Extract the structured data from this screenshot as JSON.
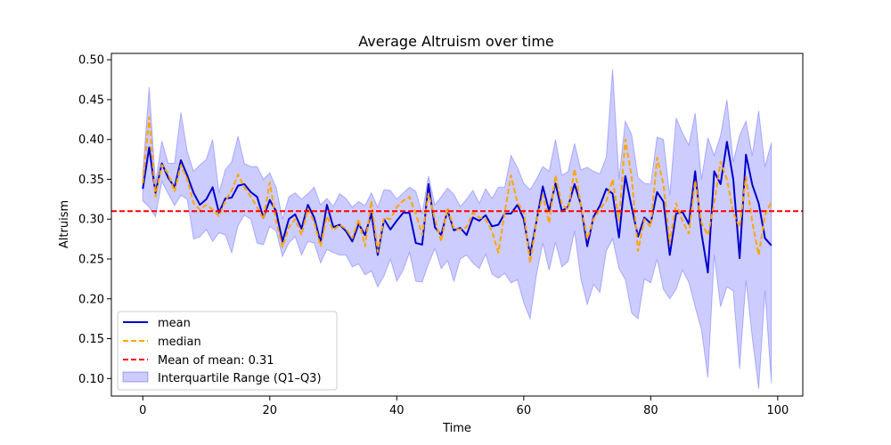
{
  "chart_data": {
    "type": "line",
    "title": "Average Altruism over time",
    "xlabel": "Time",
    "ylabel": "Altruism",
    "xlim": [
      -4.95,
      103.95
    ],
    "ylim": [
      0.078,
      0.508
    ],
    "x_ticks": [
      0,
      20,
      40,
      60,
      80,
      100
    ],
    "y_ticks": [
      0.1,
      0.15,
      0.2,
      0.25,
      0.3,
      0.35,
      0.4,
      0.45,
      0.5
    ],
    "grid": false,
    "legend_position": "lower-left",
    "reference_line": {
      "label": "Mean of mean: 0.31",
      "value": 0.31,
      "color": "#ff0000",
      "style": "dashed"
    },
    "band": {
      "label": "Interquartile Range (Q1–Q3)",
      "color": "#0000ff",
      "opacity": 0.2
    },
    "x": [
      0,
      1,
      2,
      3,
      4,
      5,
      6,
      7,
      8,
      9,
      10,
      11,
      12,
      13,
      14,
      15,
      16,
      17,
      18,
      19,
      20,
      21,
      22,
      23,
      24,
      25,
      26,
      27,
      28,
      29,
      30,
      31,
      32,
      33,
      34,
      35,
      36,
      37,
      38,
      39,
      40,
      41,
      42,
      43,
      44,
      45,
      46,
      47,
      48,
      49,
      50,
      51,
      52,
      53,
      54,
      55,
      56,
      57,
      58,
      59,
      60,
      61,
      62,
      63,
      64,
      65,
      66,
      67,
      68,
      69,
      70,
      71,
      72,
      73,
      74,
      75,
      76,
      77,
      78,
      79,
      80,
      81,
      82,
      83,
      84,
      85,
      86,
      87,
      88,
      89,
      90,
      91,
      92,
      93,
      94,
      95,
      96,
      97,
      98,
      99
    ],
    "series": [
      {
        "name": "mean",
        "color": "#0000cc",
        "style": "solid",
        "values": [
          0.338,
          0.39,
          0.333,
          0.37,
          0.352,
          0.34,
          0.374,
          0.355,
          0.333,
          0.318,
          0.325,
          0.34,
          0.308,
          0.326,
          0.327,
          0.342,
          0.344,
          0.334,
          0.328,
          0.302,
          0.324,
          0.31,
          0.272,
          0.3,
          0.306,
          0.288,
          0.318,
          0.302,
          0.271,
          0.318,
          0.29,
          0.293,
          0.285,
          0.272,
          0.294,
          0.28,
          0.307,
          0.255,
          0.3,
          0.287,
          0.298,
          0.308,
          0.308,
          0.27,
          0.268,
          0.344,
          0.29,
          0.28,
          0.311,
          0.286,
          0.289,
          0.28,
          0.302,
          0.298,
          0.305,
          0.291,
          0.293,
          0.307,
          0.307,
          0.318,
          0.3,
          0.255,
          0.297,
          0.341,
          0.31,
          0.345,
          0.31,
          0.316,
          0.344,
          0.318,
          0.266,
          0.303,
          0.317,
          0.338,
          0.332,
          0.277,
          0.354,
          0.315,
          0.278,
          0.302,
          0.295,
          0.334,
          0.322,
          0.255,
          0.307,
          0.309,
          0.294,
          0.36,
          0.282,
          0.233,
          0.36,
          0.344,
          0.397,
          0.35,
          0.251,
          0.381,
          0.343,
          0.32,
          0.276,
          0.267
        ]
      },
      {
        "name": "median",
        "color": "#ffa500",
        "style": "dashed",
        "values": [
          0.345,
          0.428,
          0.328,
          0.368,
          0.357,
          0.335,
          0.368,
          0.35,
          0.32,
          0.312,
          0.318,
          0.312,
          0.304,
          0.323,
          0.336,
          0.356,
          0.34,
          0.328,
          0.315,
          0.3,
          0.346,
          0.298,
          0.265,
          0.29,
          0.3,
          0.28,
          0.313,
          0.296,
          0.266,
          0.304,
          0.286,
          0.293,
          0.288,
          0.276,
          0.3,
          0.266,
          0.323,
          0.259,
          0.302,
          0.3,
          0.315,
          0.323,
          0.328,
          0.307,
          0.28,
          0.332,
          0.3,
          0.272,
          0.314,
          0.288,
          0.287,
          0.29,
          0.308,
          0.302,
          0.3,
          0.285,
          0.258,
          0.308,
          0.355,
          0.32,
          0.311,
          0.245,
          0.297,
          0.33,
          0.295,
          0.355,
          0.318,
          0.312,
          0.363,
          0.318,
          0.275,
          0.3,
          0.312,
          0.323,
          0.35,
          0.298,
          0.4,
          0.353,
          0.26,
          0.3,
          0.29,
          0.377,
          0.344,
          0.27,
          0.32,
          0.298,
          0.282,
          0.348,
          0.295,
          0.28,
          0.32,
          0.372,
          0.35,
          0.308,
          0.29,
          0.353,
          0.296,
          0.255,
          0.305,
          0.322
        ]
      }
    ],
    "iqr_q1": [
      0.323,
      0.315,
      0.303,
      0.347,
      0.332,
      0.317,
      0.33,
      0.325,
      0.275,
      0.278,
      0.287,
      0.272,
      0.283,
      0.28,
      0.258,
      0.292,
      0.305,
      0.3,
      0.27,
      0.268,
      0.291,
      0.285,
      0.253,
      0.27,
      0.278,
      0.255,
      0.272,
      0.27,
      0.245,
      0.262,
      0.258,
      0.255,
      0.255,
      0.24,
      0.244,
      0.23,
      0.235,
      0.215,
      0.229,
      0.25,
      0.222,
      0.236,
      0.258,
      0.222,
      0.221,
      0.244,
      0.263,
      0.238,
      0.248,
      0.222,
      0.25,
      0.255,
      0.245,
      0.238,
      0.256,
      0.231,
      0.226,
      0.232,
      0.22,
      0.224,
      0.195,
      0.175,
      0.23,
      0.27,
      0.236,
      0.271,
      0.24,
      0.247,
      0.285,
      0.225,
      0.193,
      0.218,
      0.208,
      0.26,
      0.275,
      0.238,
      0.224,
      0.182,
      0.175,
      0.225,
      0.22,
      0.25,
      0.212,
      0.2,
      0.212,
      0.236,
      0.221,
      0.19,
      0.161,
      0.101,
      0.255,
      0.19,
      0.215,
      0.21,
      0.112,
      0.223,
      0.151,
      0.087,
      0.21,
      0.094
    ],
    "iqr_q3": [
      0.358,
      0.466,
      0.345,
      0.398,
      0.37,
      0.37,
      0.434,
      0.385,
      0.36,
      0.368,
      0.375,
      0.4,
      0.333,
      0.362,
      0.372,
      0.404,
      0.37,
      0.366,
      0.366,
      0.35,
      0.358,
      0.34,
      0.3,
      0.328,
      0.333,
      0.325,
      0.332,
      0.34,
      0.318,
      0.326,
      0.316,
      0.332,
      0.326,
      0.315,
      0.322,
      0.317,
      0.333,
      0.315,
      0.337,
      0.336,
      0.325,
      0.333,
      0.34,
      0.335,
      0.307,
      0.354,
      0.318,
      0.328,
      0.339,
      0.331,
      0.316,
      0.325,
      0.336,
      0.32,
      0.338,
      0.326,
      0.34,
      0.34,
      0.38,
      0.365,
      0.345,
      0.337,
      0.35,
      0.366,
      0.36,
      0.4,
      0.355,
      0.36,
      0.395,
      0.362,
      0.365,
      0.36,
      0.357,
      0.378,
      0.488,
      0.35,
      0.423,
      0.406,
      0.352,
      0.345,
      0.344,
      0.403,
      0.4,
      0.33,
      0.427,
      0.408,
      0.393,
      0.433,
      0.35,
      0.402,
      0.38,
      0.405,
      0.45,
      0.372,
      0.405,
      0.423,
      0.38,
      0.436,
      0.366,
      0.396
    ]
  }
}
